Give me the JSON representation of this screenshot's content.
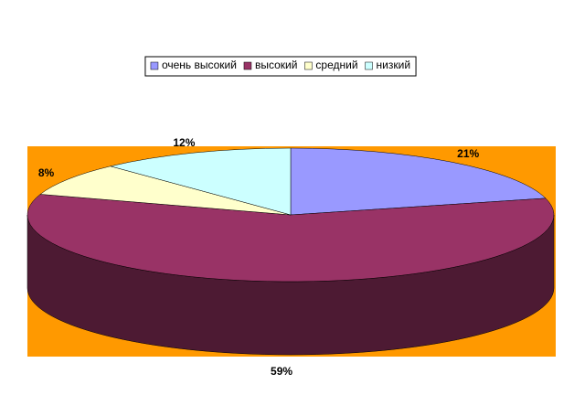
{
  "chart_data": {
    "type": "pie3d",
    "categories": [
      "очень высокий",
      "высокий",
      "средний",
      "низкий"
    ],
    "values": [
      21,
      59,
      8,
      12
    ],
    "value_labels": [
      "21%",
      "59%",
      "8%",
      "12%"
    ],
    "colors": [
      "#9999ff",
      "#993366",
      "#ffffcc",
      "#ccffff"
    ],
    "background": "#ff9900",
    "legend": "top"
  }
}
